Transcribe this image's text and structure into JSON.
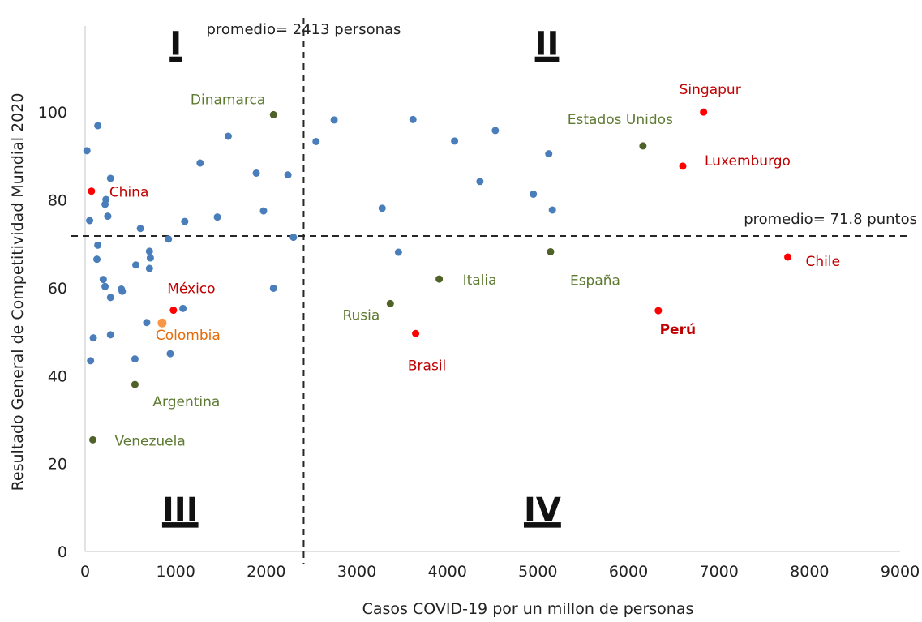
{
  "chart_data": {
    "type": "scatter",
    "xlabel": "Casos COVID-19 por un millon de personas",
    "ylabel": "Resultado General  de Competitividad Mundial 2020",
    "xlim": [
      0,
      9000
    ],
    "ylim": [
      0,
      120
    ],
    "x_ticks": [
      "0",
      "1000",
      "2000",
      "3000",
      "4000",
      "5000",
      "6000",
      "7000",
      "8000",
      "9000"
    ],
    "y_ticks": [
      "0",
      "20",
      "40",
      "60",
      "80",
      "100"
    ],
    "grid": false,
    "colors": {
      "default": "#4a7ebb",
      "highlight_red": "#ff0000",
      "highlight_green": "#4f6228",
      "colombia": "#f79646",
      "label_red": "#c00000",
      "label_green": "#5e7a32",
      "label_orange": "#e46c0a"
    },
    "reference_lines": [
      {
        "orientation": "vertical",
        "value": 2413,
        "label": "promedio=  2413 personas"
      },
      {
        "orientation": "horizontal",
        "value": 71.8,
        "label": "promedio=  71.8 puntos"
      }
    ],
    "quadrants": [
      {
        "label": "I",
        "x": 1000,
        "y": 113
      },
      {
        "label": "II",
        "x": 5100,
        "y": 113
      },
      {
        "label": "III",
        "x": 1050,
        "y": 7
      },
      {
        "label": "IV",
        "x": 5050,
        "y": 7
      }
    ],
    "labeled_points": [
      {
        "name": "Singapur",
        "x": 6830,
        "y": 100.0,
        "color": "red"
      },
      {
        "name": "Luxemburgo",
        "x": 6600,
        "y": 87.7,
        "color": "red"
      },
      {
        "name": "Chile",
        "x": 7760,
        "y": 67.0,
        "color": "red"
      },
      {
        "name": "Perú",
        "x": 6330,
        "y": 54.8,
        "color": "red",
        "bold": true
      },
      {
        "name": "Brasil",
        "x": 3650,
        "y": 49.6,
        "color": "red"
      },
      {
        "name": "China",
        "x": 70,
        "y": 82.0,
        "color": "red"
      },
      {
        "name": "México",
        "x": 975,
        "y": 54.9,
        "color": "red"
      },
      {
        "name": "Colombia",
        "x": 850,
        "y": 52.0,
        "color": "orange"
      },
      {
        "name": "Dinamarca",
        "x": 2080,
        "y": 99.4,
        "color": "green"
      },
      {
        "name": "Estados Unidos",
        "x": 6160,
        "y": 92.3,
        "color": "green"
      },
      {
        "name": "España",
        "x": 5140,
        "y": 68.2,
        "color": "green"
      },
      {
        "name": "Italia",
        "x": 3910,
        "y": 62.0,
        "color": "green"
      },
      {
        "name": "Rusia",
        "x": 3370,
        "y": 56.4,
        "color": "green"
      },
      {
        "name": "Argentina",
        "x": 550,
        "y": 38.0,
        "color": "green"
      },
      {
        "name": "Venezuela",
        "x": 85,
        "y": 25.4,
        "color": "green"
      }
    ],
    "series": [
      {
        "points": [
          [
            20,
            91.2
          ],
          [
            140,
            96.9
          ],
          [
            50,
            75.3
          ],
          [
            280,
            84.9
          ],
          [
            230,
            80.1
          ],
          [
            220,
            79.0
          ],
          [
            250,
            76.3
          ],
          [
            140,
            69.7
          ],
          [
            130,
            66.5
          ],
          [
            200,
            61.9
          ],
          [
            220,
            60.3
          ],
          [
            280,
            57.8
          ],
          [
            90,
            48.6
          ],
          [
            60,
            43.4
          ],
          [
            280,
            49.3
          ],
          [
            400,
            59.7
          ],
          [
            410,
            59.2
          ],
          [
            560,
            65.2
          ],
          [
            610,
            73.5
          ],
          [
            710,
            68.3
          ],
          [
            720,
            66.8
          ],
          [
            710,
            64.4
          ],
          [
            680,
            52.1
          ],
          [
            550,
            43.8
          ],
          [
            920,
            71.1
          ],
          [
            940,
            45.0
          ],
          [
            1080,
            55.3
          ],
          [
            1100,
            75.1
          ],
          [
            1270,
            88.4
          ],
          [
            1460,
            76.1
          ],
          [
            1580,
            94.5
          ],
          [
            1890,
            86.1
          ],
          [
            1970,
            77.5
          ],
          [
            2080,
            59.9
          ],
          [
            2240,
            85.7
          ],
          [
            2300,
            71.5
          ],
          [
            2550,
            93.3
          ],
          [
            2750,
            98.2
          ],
          [
            3280,
            78.1
          ],
          [
            3460,
            68.1
          ],
          [
            3620,
            98.3
          ],
          [
            4080,
            93.4
          ],
          [
            4360,
            84.2
          ],
          [
            4530,
            95.8
          ],
          [
            4950,
            81.3
          ],
          [
            5120,
            90.5
          ],
          [
            5160,
            77.7
          ]
        ]
      }
    ]
  }
}
